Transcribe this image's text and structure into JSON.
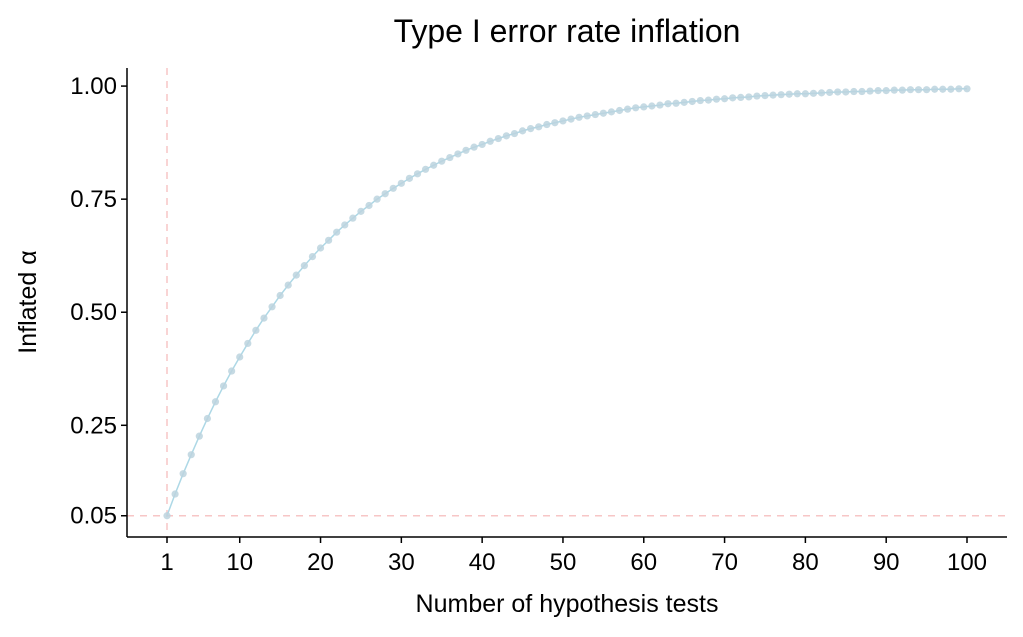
{
  "chart_data": {
    "type": "line",
    "title": "Type I error rate inflation",
    "x_label": "Number of hypothesis tests",
    "y_label": "Inflated α",
    "x": [
      1,
      2,
      3,
      4,
      5,
      6,
      7,
      8,
      9,
      10,
      11,
      12,
      13,
      14,
      15,
      16,
      17,
      18,
      19,
      20,
      21,
      22,
      23,
      24,
      25,
      26,
      27,
      28,
      29,
      30,
      31,
      32,
      33,
      34,
      35,
      36,
      37,
      38,
      39,
      40,
      41,
      42,
      43,
      44,
      45,
      46,
      47,
      48,
      49,
      50,
      51,
      52,
      53,
      54,
      55,
      56,
      57,
      58,
      59,
      60,
      61,
      62,
      63,
      64,
      65,
      66,
      67,
      68,
      69,
      70,
      71,
      72,
      73,
      74,
      75,
      76,
      77,
      78,
      79,
      80,
      81,
      82,
      83,
      84,
      85,
      86,
      87,
      88,
      89,
      90,
      91,
      92,
      93,
      94,
      95,
      96,
      97,
      98,
      99,
      100
    ],
    "series": [
      {
        "name": "Inflated α",
        "color": "#add8e6",
        "marker_color": "#bcd3de",
        "values": [
          0.05,
          0.098,
          0.143,
          0.185,
          0.226,
          0.265,
          0.302,
          0.337,
          0.37,
          0.401,
          0.431,
          0.46,
          0.487,
          0.512,
          0.537,
          0.56,
          0.582,
          0.603,
          0.623,
          0.642,
          0.659,
          0.677,
          0.693,
          0.708,
          0.723,
          0.736,
          0.75,
          0.762,
          0.774,
          0.785,
          0.796,
          0.806,
          0.816,
          0.825,
          0.834,
          0.842,
          0.85,
          0.858,
          0.865,
          0.871,
          0.878,
          0.884,
          0.89,
          0.895,
          0.901,
          0.906,
          0.91,
          0.915,
          0.919,
          0.923,
          0.927,
          0.931,
          0.934,
          0.937,
          0.94,
          0.943,
          0.946,
          0.949,
          0.952,
          0.954,
          0.956,
          0.958,
          0.961,
          0.962,
          0.964,
          0.966,
          0.968,
          0.969,
          0.971,
          0.972,
          0.974,
          0.975,
          0.976,
          0.978,
          0.979,
          0.98,
          0.981,
          0.982,
          0.983,
          0.983,
          0.984,
          0.985,
          0.986,
          0.987,
          0.987,
          0.988,
          0.988,
          0.989,
          0.99,
          0.99,
          0.991,
          0.991,
          0.992,
          0.992,
          0.992,
          0.993,
          0.993,
          0.993,
          0.994,
          0.994
        ]
      }
    ],
    "xlim": [
      -3.95,
      104.95
    ],
    "ylim": [
      0.003,
      1.04
    ],
    "xticks": [
      1,
      10,
      20,
      30,
      40,
      50,
      60,
      70,
      80,
      90,
      100
    ],
    "yticks": [
      0.05,
      0.25,
      {
        "value": 0.5,
        "label": "0.50"
      },
      0.75,
      {
        "value": 1,
        "label": "1.00"
      }
    ],
    "hlines": [
      0.05
    ],
    "vlines": [
      1
    ],
    "reference_color": "#f7c6c6",
    "grid": false
  }
}
